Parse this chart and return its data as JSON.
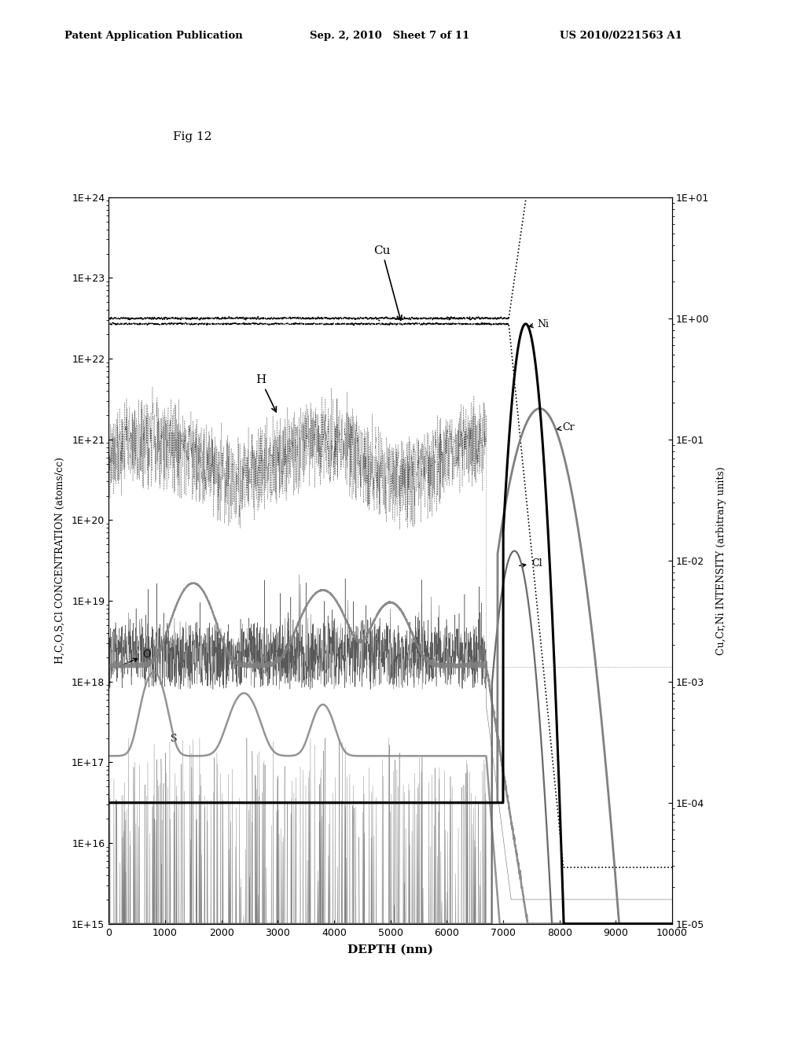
{
  "title": "Fig 12",
  "xlabel": "DEPTH (nm)",
  "ylabel_left": "H,C,O,S,Cl CONCENTRATION (atoms/cc)",
  "ylabel_right": "Cu,Cr,Ni INTENSITY (arbitrary units)",
  "xlim": [
    0,
    10000
  ],
  "ylim_left": [
    1000000000000000.0,
    1e+24
  ],
  "ylim_right": [
    1e-05,
    10.0
  ],
  "xticks": [
    0,
    1000,
    2000,
    3000,
    4000,
    5000,
    6000,
    7000,
    8000,
    9000,
    10000
  ],
  "header_left": "Patent Application Publication",
  "header_center": "Sep. 2, 2010   Sheet 7 of 11",
  "header_right": "US 2010/0221563 A1",
  "background_color": "#ffffff",
  "plot_bg_color": "#ffffff",
  "fig12_x": 0.215,
  "fig12_y": 0.865
}
